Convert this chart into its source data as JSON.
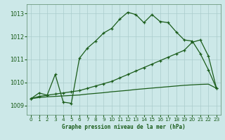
{
  "title": "Graphe pression niveau de la mer (hPa)",
  "background_color": "#cce8e8",
  "grid_color": "#aacccc",
  "line_color": "#1a5c1a",
  "xlim": [
    -0.5,
    23.5
  ],
  "ylim": [
    1008.6,
    1013.4
  ],
  "xticks": [
    0,
    1,
    2,
    3,
    4,
    5,
    6,
    7,
    8,
    9,
    10,
    11,
    12,
    13,
    14,
    15,
    16,
    17,
    18,
    19,
    20,
    21,
    22,
    23
  ],
  "yticks": [
    1009,
    1010,
    1011,
    1012,
    1013
  ],
  "line1_x": [
    0,
    1,
    2,
    3,
    4,
    5,
    6,
    7,
    8,
    9,
    10,
    11,
    12,
    13,
    14,
    15,
    16,
    17,
    18,
    19,
    20,
    21,
    22,
    23
  ],
  "line1_y": [
    1009.3,
    1009.55,
    1009.45,
    1010.35,
    1009.15,
    1009.1,
    1011.05,
    1011.5,
    1011.8,
    1012.15,
    1012.35,
    1012.75,
    1013.05,
    1012.95,
    1012.6,
    1012.95,
    1012.65,
    1012.6,
    1012.2,
    1011.85,
    1011.8,
    1011.25,
    1010.55,
    1009.75
  ],
  "line2_x": [
    0,
    1,
    2,
    3,
    4,
    5,
    6,
    7,
    8,
    9,
    10,
    11,
    12,
    13,
    14,
    15,
    16,
    17,
    18,
    19,
    20,
    21,
    22,
    23
  ],
  "line2_y": [
    1009.3,
    1009.4,
    1009.45,
    1009.5,
    1009.55,
    1009.6,
    1009.65,
    1009.75,
    1009.85,
    1009.95,
    1010.05,
    1010.2,
    1010.35,
    1010.5,
    1010.65,
    1010.8,
    1010.95,
    1011.1,
    1011.25,
    1011.4,
    1011.75,
    1011.85,
    1011.15,
    1009.75
  ],
  "line3_x": [
    0,
    1,
    2,
    3,
    4,
    5,
    6,
    7,
    8,
    9,
    10,
    11,
    12,
    13,
    14,
    15,
    16,
    17,
    18,
    19,
    20,
    21,
    22,
    23
  ],
  "line3_y": [
    1009.3,
    1009.35,
    1009.38,
    1009.4,
    1009.42,
    1009.44,
    1009.46,
    1009.5,
    1009.53,
    1009.56,
    1009.6,
    1009.63,
    1009.66,
    1009.7,
    1009.73,
    1009.76,
    1009.79,
    1009.82,
    1009.85,
    1009.88,
    1009.9,
    1009.92,
    1009.93,
    1009.75
  ]
}
